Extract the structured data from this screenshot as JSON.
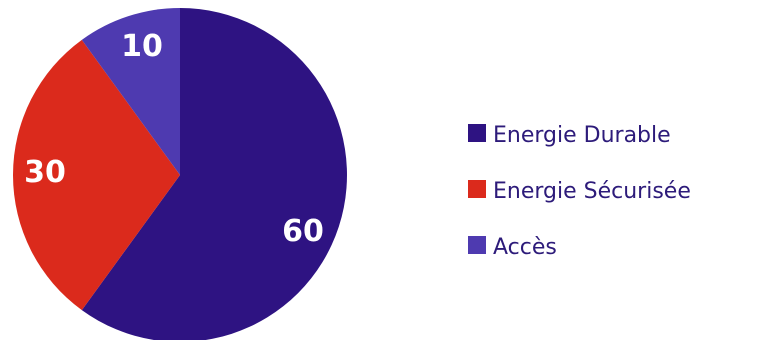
{
  "chart_data": {
    "type": "pie",
    "title": "",
    "start_angle_deg": 0,
    "direction": "clockwise",
    "legend_position": "right",
    "slices": [
      {
        "name": "Energie Durable",
        "value": 60,
        "label": "60",
        "color": "#2e1382"
      },
      {
        "name": "Energie Sécurisée",
        "value": 30,
        "label": "30",
        "color": "#db2a1c"
      },
      {
        "name": "Accès",
        "value": 10,
        "label": "10",
        "color": "#4e3ab0"
      }
    ]
  }
}
